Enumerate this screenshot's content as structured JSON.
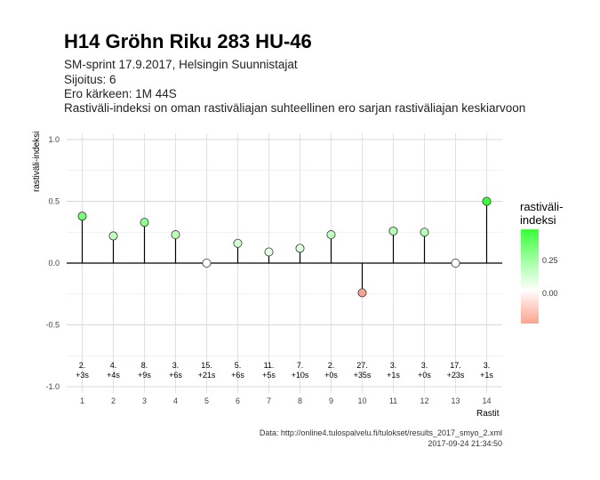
{
  "title": "H14 Gröhn Riku 283 HU-46",
  "subtitle_lines": [
    "SM-sprint 17.9.2017, Helsingin Suunnistajat",
    "Sijoitus: 6",
    "Ero kärkeen: 1M 44S",
    "Rastiväli-indeksi on oman rastiväliajan suhteellinen ero sarjan rastiväliajan keskiarvoon"
  ],
  "source": {
    "url_line": "Data: http://online4.tulospalvelu.fi/tulokset/results_2017_smyo_2.xml",
    "timestamp": "2017-09-24 21:34:50"
  },
  "legend": {
    "title_line1": "rastiväli-",
    "title_line2": "indeksi",
    "ticks": [
      "0.25",
      "0.00"
    ],
    "colors": {
      "high": "#3aff3a",
      "mid": "#ffffff",
      "low": "#fba58f"
    }
  },
  "chart_data": {
    "type": "scatter",
    "title": "H14 Gröhn Riku 283 HU-46",
    "xlabel": "Rastit",
    "ylabel": "rastiväli-indeksi",
    "x": [
      1,
      2,
      3,
      4,
      5,
      6,
      7,
      8,
      9,
      10,
      11,
      12,
      13,
      14
    ],
    "y": [
      0.38,
      0.22,
      0.33,
      0.23,
      0.0,
      0.16,
      0.09,
      0.12,
      0.23,
      -0.24,
      0.26,
      0.25,
      0.0,
      0.5
    ],
    "rank_labels": [
      "2.",
      "4.",
      "8.",
      "3.",
      "15.",
      "5.",
      "11.",
      "7.",
      "2.",
      "27.",
      "3.",
      "3.",
      "17.",
      "3."
    ],
    "diff_labels": [
      "+3s",
      "+4s",
      "+9s",
      "+6s",
      "+21s",
      "+6s",
      "+5s",
      "+10s",
      "+0s",
      "+35s",
      "+1s",
      "+0s",
      "+23s",
      "+1s"
    ],
    "x_ticks": [
      "1",
      "2",
      "3",
      "4",
      "5",
      "6",
      "7",
      "8",
      "9",
      "10",
      "11",
      "12",
      "13",
      "14"
    ],
    "y_ticks": [
      "1.0",
      "0.5",
      "0.0",
      "-0.5",
      "-1.0"
    ],
    "y_tick_values": [
      1.0,
      0.5,
      0.0,
      -0.5,
      -1.0
    ],
    "xlim": [
      0.5,
      14.5
    ],
    "ylim": [
      -1.05,
      1.05
    ],
    "grid": true,
    "legend_placement": "right"
  }
}
